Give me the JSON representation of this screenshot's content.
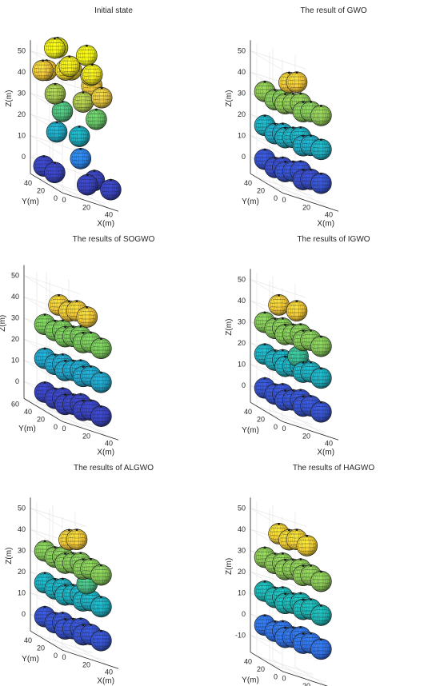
{
  "figure": {
    "background": "#ffffff",
    "axis_color": "#262626",
    "grid_color": "#e6e6e6",
    "colormap": [
      "#3e26a8",
      "#2e7ff6",
      "#1ab6b8",
      "#72c95c",
      "#f7c83b",
      "#f9fb15"
    ]
  },
  "chart_data": [
    {
      "type": "scatter3d",
      "title": "Initial state",
      "xlabel": "X(m)",
      "ylabel": "Y(m)",
      "zlabel": "Z(m)",
      "xticks": [
        "0",
        "20",
        "40"
      ],
      "yticks": [
        "0",
        "20",
        "40"
      ],
      "zticks": [
        "0",
        "10",
        "20",
        "30",
        "40",
        "50"
      ],
      "xlim": [
        0,
        50
      ],
      "ylim": [
        0,
        50
      ],
      "zlim": [
        0,
        55
      ],
      "sphere_radius": 8,
      "points": [
        [
          -4,
          22,
          0
        ],
        [
          -4,
          5,
          0
        ],
        [
          20,
          -4,
          0
        ],
        [
          50,
          12,
          0
        ],
        [
          48,
          34,
          0
        ],
        [
          30,
          24,
          9
        ],
        [
          15,
          35,
          17
        ],
        [
          38,
          40,
          18
        ],
        [
          24,
          42,
          27
        ],
        [
          44,
          24,
          30
        ],
        [
          5,
          20,
          36
        ],
        [
          26,
          13,
          37
        ],
        [
          42,
          12,
          42
        ],
        [
          10,
          42,
          44
        ],
        [
          32,
          42,
          48
        ],
        [
          2,
          34,
          44
        ],
        [
          48,
          38,
          44
        ],
        [
          20,
          30,
          48
        ],
        [
          38,
          22,
          50
        ],
        [
          12,
          10,
          52
        ],
        [
          30,
          6,
          52
        ],
        [
          22,
          46,
          56
        ],
        [
          8,
          26,
          57
        ],
        [
          40,
          32,
          58
        ]
      ]
    },
    {
      "type": "scatter3d",
      "title": "The result of GWO",
      "xlabel": "X(m)",
      "ylabel": "Y(m)",
      "zlabel": "Z(m)",
      "xticks": [
        "0",
        "20",
        "40"
      ],
      "yticks": [
        "0",
        "20",
        "40"
      ],
      "zticks": [
        "0",
        "10",
        "20",
        "30",
        "40",
        "50"
      ],
      "xlim": [
        0,
        50
      ],
      "ylim": [
        0,
        50
      ],
      "zlim": [
        0,
        55
      ],
      "sphere_radius": 8,
      "points": [
        [
          6,
          6,
          2
        ],
        [
          22,
          6,
          1
        ],
        [
          38,
          6,
          2
        ],
        [
          6,
          22,
          1
        ],
        [
          22,
          22,
          2
        ],
        [
          38,
          22,
          1
        ],
        [
          6,
          38,
          2
        ],
        [
          22,
          38,
          1
        ],
        [
          38,
          38,
          2
        ],
        [
          6,
          6,
          18
        ],
        [
          22,
          6,
          17
        ],
        [
          38,
          6,
          18
        ],
        [
          6,
          22,
          17
        ],
        [
          22,
          22,
          18
        ],
        [
          38,
          22,
          17
        ],
        [
          6,
          38,
          18
        ],
        [
          22,
          38,
          17
        ],
        [
          38,
          38,
          18
        ],
        [
          6,
          6,
          34
        ],
        [
          22,
          6,
          33
        ],
        [
          38,
          6,
          34
        ],
        [
          6,
          22,
          33
        ],
        [
          22,
          22,
          34
        ],
        [
          38,
          22,
          33
        ],
        [
          6,
          38,
          34
        ],
        [
          22,
          38,
          33
        ],
        [
          38,
          38,
          34
        ],
        [
          14,
          14,
          44
        ],
        [
          30,
          30,
          44
        ]
      ]
    },
    {
      "type": "scatter3d",
      "title": "The results of SOGWO",
      "xlabel": "X(m)",
      "ylabel": "Y(m)",
      "zlabel": "Z(m)",
      "xticks": [
        "0",
        "20",
        "40"
      ],
      "yticks": [
        "0",
        "20",
        "40",
        "60"
      ],
      "zticks": [
        "0",
        "10",
        "20",
        "30",
        "40",
        "50"
      ],
      "xlim": [
        0,
        50
      ],
      "ylim": [
        0,
        60
      ],
      "zlim": [
        0,
        55
      ],
      "sphere_radius": 8,
      "points": [
        [
          6,
          6,
          0
        ],
        [
          22,
          6,
          0
        ],
        [
          38,
          6,
          0
        ],
        [
          6,
          22,
          0
        ],
        [
          22,
          22,
          0
        ],
        [
          38,
          22,
          0
        ],
        [
          6,
          38,
          0
        ],
        [
          22,
          38,
          0
        ],
        [
          38,
          38,
          0
        ],
        [
          6,
          6,
          16
        ],
        [
          22,
          6,
          16
        ],
        [
          38,
          6,
          16
        ],
        [
          6,
          22,
          16
        ],
        [
          22,
          22,
          16
        ],
        [
          38,
          22,
          16
        ],
        [
          6,
          38,
          16
        ],
        [
          22,
          38,
          16
        ],
        [
          38,
          38,
          16
        ],
        [
          6,
          6,
          32
        ],
        [
          22,
          6,
          32
        ],
        [
          38,
          6,
          32
        ],
        [
          6,
          22,
          32
        ],
        [
          22,
          22,
          32
        ],
        [
          38,
          22,
          32
        ],
        [
          6,
          38,
          32
        ],
        [
          22,
          38,
          32
        ],
        [
          38,
          38,
          32
        ],
        [
          14,
          14,
          44
        ],
        [
          30,
          14,
          44
        ],
        [
          14,
          30,
          44
        ],
        [
          30,
          30,
          44
        ]
      ]
    },
    {
      "type": "scatter3d",
      "title": "The results of IGWO",
      "xlabel": "X(m)",
      "ylabel": "Y(m)",
      "zlabel": "Z(m)",
      "xticks": [
        "0",
        "20",
        "40"
      ],
      "yticks": [
        "0",
        "20",
        "40"
      ],
      "zticks": [
        "0",
        "10",
        "20",
        "30",
        "40",
        "50"
      ],
      "xlim": [
        0,
        50
      ],
      "ylim": [
        0,
        50
      ],
      "zlim": [
        0,
        55
      ],
      "sphere_radius": 8,
      "points": [
        [
          6,
          6,
          2
        ],
        [
          22,
          6,
          2
        ],
        [
          38,
          6,
          2
        ],
        [
          6,
          22,
          2
        ],
        [
          22,
          22,
          2
        ],
        [
          38,
          22,
          2
        ],
        [
          6,
          38,
          2
        ],
        [
          22,
          38,
          2
        ],
        [
          38,
          38,
          2
        ],
        [
          6,
          6,
          18
        ],
        [
          22,
          6,
          18
        ],
        [
          38,
          6,
          18
        ],
        [
          6,
          22,
          18
        ],
        [
          22,
          22,
          18
        ],
        [
          38,
          22,
          18
        ],
        [
          6,
          38,
          18
        ],
        [
          22,
          38,
          18
        ],
        [
          38,
          38,
          18
        ],
        [
          6,
          6,
          33
        ],
        [
          22,
          6,
          33
        ],
        [
          38,
          6,
          33
        ],
        [
          6,
          22,
          33
        ],
        [
          22,
          22,
          33
        ],
        [
          38,
          22,
          33
        ],
        [
          6,
          38,
          33
        ],
        [
          22,
          38,
          33
        ],
        [
          38,
          38,
          33
        ],
        [
          14,
          30,
          44
        ],
        [
          30,
          30,
          44
        ],
        [
          22,
          14,
          24
        ]
      ]
    },
    {
      "type": "scatter3d",
      "title": "The results of ALGWO",
      "xlabel": "X(m)",
      "ylabel": "Y(m)",
      "zlabel": "Z(m)",
      "xticks": [
        "0",
        "20",
        "40"
      ],
      "yticks": [
        "0",
        "20",
        "40"
      ],
      "zticks": [
        "0",
        "10",
        "20",
        "30",
        "40",
        "50"
      ],
      "xlim": [
        0,
        50
      ],
      "ylim": [
        0,
        50
      ],
      "zlim": [
        0,
        55
      ],
      "sphere_radius": 8,
      "points": [
        [
          6,
          6,
          2
        ],
        [
          22,
          6,
          2
        ],
        [
          38,
          6,
          2
        ],
        [
          6,
          22,
          2
        ],
        [
          22,
          22,
          2
        ],
        [
          38,
          22,
          2
        ],
        [
          6,
          38,
          2
        ],
        [
          22,
          38,
          2
        ],
        [
          38,
          38,
          2
        ],
        [
          6,
          6,
          18
        ],
        [
          22,
          6,
          18
        ],
        [
          38,
          6,
          18
        ],
        [
          6,
          22,
          18
        ],
        [
          22,
          22,
          18
        ],
        [
          38,
          22,
          18
        ],
        [
          6,
          38,
          18
        ],
        [
          22,
          38,
          18
        ],
        [
          38,
          38,
          18
        ],
        [
          6,
          6,
          33
        ],
        [
          22,
          6,
          33
        ],
        [
          38,
          6,
          33
        ],
        [
          6,
          22,
          33
        ],
        [
          22,
          22,
          33
        ],
        [
          38,
          22,
          33
        ],
        [
          6,
          38,
          33
        ],
        [
          22,
          38,
          33
        ],
        [
          38,
          38,
          33
        ],
        [
          14,
          14,
          44
        ],
        [
          30,
          30,
          44
        ],
        [
          30,
          14,
          26
        ]
      ]
    },
    {
      "type": "scatter3d",
      "title": "The results of HAGWO",
      "xlabel": "X(m)",
      "ylabel": "Y(m)",
      "zlabel": "Z(m)",
      "xticks": [
        "0",
        "20",
        "40"
      ],
      "yticks": [
        "0",
        "20",
        "40"
      ],
      "zticks": [
        "-10",
        "0",
        "10",
        "20",
        "30",
        "40",
        "50"
      ],
      "xlim": [
        0,
        50
      ],
      "ylim": [
        0,
        50
      ],
      "zlim": [
        -10,
        55
      ],
      "sphere_radius": 8,
      "points": [
        [
          6,
          6,
          -2
        ],
        [
          22,
          6,
          -2
        ],
        [
          38,
          6,
          -2
        ],
        [
          6,
          22,
          -2
        ],
        [
          22,
          22,
          -2
        ],
        [
          38,
          22,
          -2
        ],
        [
          6,
          38,
          -2
        ],
        [
          22,
          38,
          -2
        ],
        [
          38,
          38,
          -2
        ],
        [
          6,
          6,
          14
        ],
        [
          22,
          6,
          14
        ],
        [
          38,
          6,
          14
        ],
        [
          6,
          22,
          14
        ],
        [
          22,
          22,
          14
        ],
        [
          38,
          22,
          14
        ],
        [
          6,
          38,
          14
        ],
        [
          22,
          38,
          14
        ],
        [
          38,
          38,
          14
        ],
        [
          6,
          6,
          30
        ],
        [
          22,
          6,
          30
        ],
        [
          38,
          6,
          30
        ],
        [
          6,
          22,
          30
        ],
        [
          22,
          22,
          30
        ],
        [
          38,
          22,
          30
        ],
        [
          6,
          38,
          30
        ],
        [
          22,
          38,
          30
        ],
        [
          38,
          38,
          30
        ],
        [
          14,
          14,
          44
        ],
        [
          30,
          14,
          44
        ],
        [
          14,
          30,
          44
        ],
        [
          30,
          30,
          44
        ]
      ]
    }
  ]
}
